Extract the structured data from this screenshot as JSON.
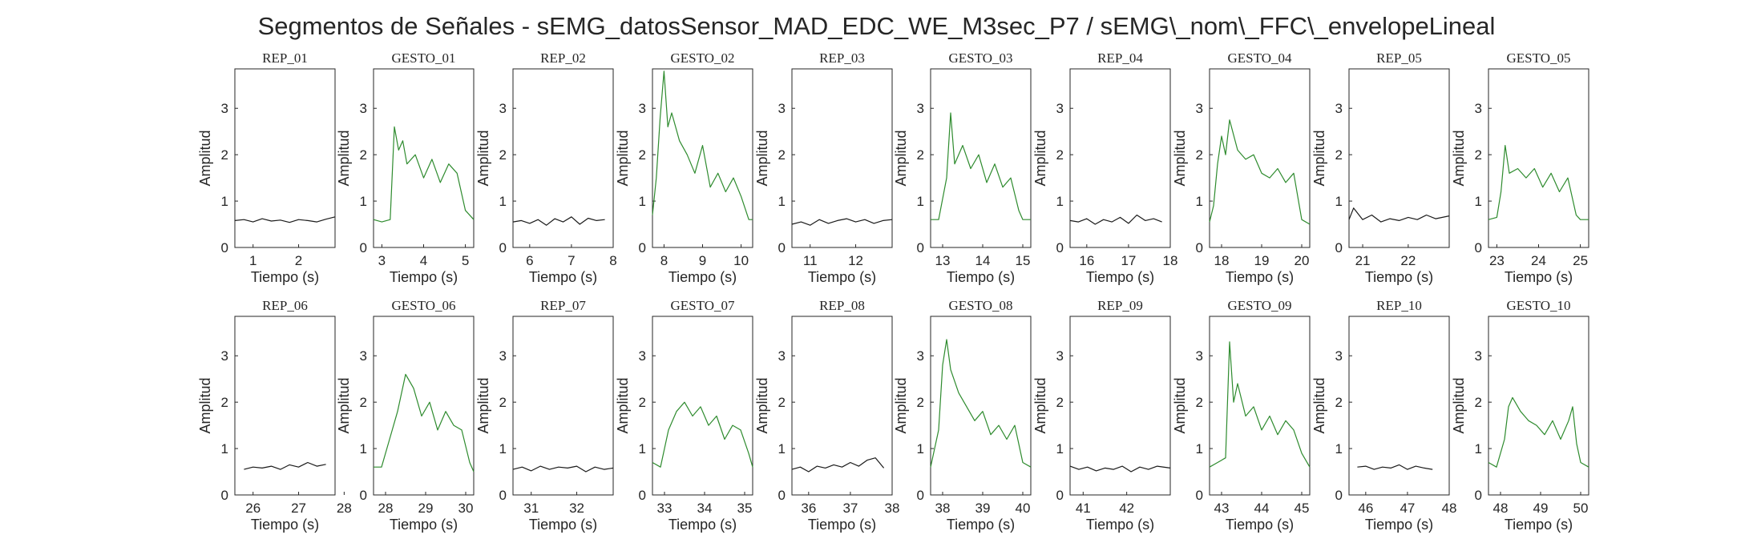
{
  "figure_title": "Segmentos de Señales - sEMG_datosSensor_MAD_EDC_WE_M3sec_P7 / sEMG\\_nom\\_FFC\\_envelopeLineal",
  "colors": {
    "rep": "#1a1a1a",
    "gesto": "#2e8b2e",
    "axes": "#262626"
  },
  "chart_data": [
    {
      "type": "line",
      "title": "REP_01",
      "xlabel": "Tiempo (s)",
      "ylabel": "Amplitud",
      "xlim": [
        0.6,
        2.8
      ],
      "ylim": [
        0,
        3.85
      ],
      "xticks": [
        1,
        2
      ],
      "yticks": [
        0,
        1,
        2,
        3
      ],
      "color": "rep",
      "x": [
        0.6,
        0.8,
        1.0,
        1.2,
        1.4,
        1.6,
        1.8,
        2.0,
        2.2,
        2.4,
        2.6,
        2.8
      ],
      "values": [
        0.58,
        0.6,
        0.55,
        0.62,
        0.57,
        0.59,
        0.54,
        0.6,
        0.58,
        0.55,
        0.61,
        0.66
      ]
    },
    {
      "type": "line",
      "title": "GESTO_01",
      "xlabel": "Tiempo (s)",
      "ylabel": "Amplitud",
      "xlim": [
        2.8,
        5.2
      ],
      "ylim": [
        0,
        3.85
      ],
      "xticks": [
        3,
        4,
        5
      ],
      "yticks": [
        0,
        1,
        2,
        3
      ],
      "color": "gesto",
      "x": [
        2.8,
        3.0,
        3.2,
        3.3,
        3.4,
        3.5,
        3.6,
        3.8,
        4.0,
        4.2,
        4.4,
        4.6,
        4.8,
        5.0,
        5.2
      ],
      "values": [
        0.6,
        0.55,
        0.6,
        2.6,
        2.1,
        2.3,
        1.8,
        2.0,
        1.5,
        1.9,
        1.4,
        1.8,
        1.6,
        0.8,
        0.6
      ]
    },
    {
      "type": "line",
      "title": "REP_02",
      "xlabel": "Tiempo (s)",
      "ylabel": "Amplitud",
      "xlim": [
        5.6,
        8.0
      ],
      "ylim": [
        0,
        3.85
      ],
      "xticks": [
        6,
        7,
        8
      ],
      "yticks": [
        0,
        1,
        2,
        3
      ],
      "color": "rep",
      "x": [
        5.6,
        5.8,
        6.0,
        6.2,
        6.4,
        6.6,
        6.8,
        7.0,
        7.2,
        7.4,
        7.6,
        7.8
      ],
      "values": [
        0.55,
        0.58,
        0.52,
        0.6,
        0.48,
        0.62,
        0.55,
        0.66,
        0.5,
        0.63,
        0.58,
        0.6
      ]
    },
    {
      "type": "line",
      "title": "GESTO_02",
      "xlabel": "Tiempo (s)",
      "ylabel": "Amplitud",
      "xlim": [
        7.7,
        10.3
      ],
      "ylim": [
        0,
        3.85
      ],
      "xticks": [
        8,
        9,
        10
      ],
      "yticks": [
        0,
        1,
        2,
        3
      ],
      "color": "gesto",
      "x": [
        7.7,
        7.8,
        7.9,
        8.0,
        8.1,
        8.2,
        8.4,
        8.6,
        8.8,
        9.0,
        9.2,
        9.4,
        9.6,
        9.8,
        10.0,
        10.2,
        10.3
      ],
      "values": [
        0.7,
        1.5,
        2.8,
        3.8,
        2.6,
        2.9,
        2.3,
        2.0,
        1.6,
        2.2,
        1.3,
        1.6,
        1.2,
        1.5,
        1.1,
        0.6,
        0.6
      ]
    },
    {
      "type": "line",
      "title": "REP_03",
      "xlabel": "Tiempo (s)",
      "ylabel": "Amplitud",
      "xlim": [
        10.6,
        12.8
      ],
      "ylim": [
        0,
        3.85
      ],
      "xticks": [
        11,
        12
      ],
      "yticks": [
        0,
        1,
        2,
        3
      ],
      "color": "rep",
      "x": [
        10.6,
        10.8,
        11.0,
        11.2,
        11.4,
        11.6,
        11.8,
        12.0,
        12.2,
        12.4,
        12.6,
        12.8
      ],
      "values": [
        0.5,
        0.55,
        0.48,
        0.6,
        0.52,
        0.58,
        0.62,
        0.55,
        0.6,
        0.52,
        0.58,
        0.6
      ]
    },
    {
      "type": "line",
      "title": "GESTO_03",
      "xlabel": "Tiempo (s)",
      "ylabel": "Amplitud",
      "xlim": [
        12.7,
        15.2
      ],
      "ylim": [
        0,
        3.85
      ],
      "xticks": [
        13,
        14,
        15
      ],
      "yticks": [
        0,
        1,
        2,
        3
      ],
      "color": "gesto",
      "x": [
        12.7,
        12.9,
        13.1,
        13.2,
        13.3,
        13.5,
        13.7,
        13.9,
        14.1,
        14.3,
        14.5,
        14.7,
        14.9,
        15.0,
        15.2
      ],
      "values": [
        0.6,
        0.6,
        1.5,
        2.9,
        1.8,
        2.2,
        1.7,
        2.0,
        1.4,
        1.8,
        1.3,
        1.5,
        0.8,
        0.6,
        0.6
      ]
    },
    {
      "type": "line",
      "title": "REP_04",
      "xlabel": "Tiempo (s)",
      "ylabel": "Amplitud",
      "xlim": [
        15.6,
        18.0
      ],
      "ylim": [
        0,
        3.85
      ],
      "xticks": [
        16,
        17,
        18
      ],
      "yticks": [
        0,
        1,
        2,
        3
      ],
      "color": "rep",
      "x": [
        15.6,
        15.8,
        16.0,
        16.2,
        16.4,
        16.6,
        16.8,
        17.0,
        17.2,
        17.4,
        17.6,
        17.8
      ],
      "values": [
        0.58,
        0.55,
        0.62,
        0.5,
        0.6,
        0.55,
        0.65,
        0.52,
        0.7,
        0.58,
        0.62,
        0.55
      ]
    },
    {
      "type": "line",
      "title": "GESTO_04",
      "xlabel": "Tiempo (s)",
      "ylabel": "Amplitud",
      "xlim": [
        17.7,
        20.2
      ],
      "ylim": [
        0,
        3.85
      ],
      "xticks": [
        18,
        19,
        20
      ],
      "yticks": [
        0,
        1,
        2,
        3
      ],
      "color": "gesto",
      "x": [
        17.7,
        17.8,
        17.9,
        18.0,
        18.1,
        18.2,
        18.4,
        18.6,
        18.8,
        19.0,
        19.2,
        19.4,
        19.6,
        19.8,
        20.0,
        20.2
      ],
      "values": [
        0.55,
        0.9,
        1.8,
        2.4,
        2.0,
        2.75,
        2.1,
        1.9,
        2.0,
        1.6,
        1.5,
        1.7,
        1.4,
        1.6,
        0.6,
        0.5
      ]
    },
    {
      "type": "line",
      "title": "REP_05",
      "xlabel": "Tiempo (s)",
      "ylabel": "Amplitud",
      "xlim": [
        20.7,
        22.9
      ],
      "ylim": [
        0,
        3.85
      ],
      "xticks": [
        21,
        22
      ],
      "yticks": [
        0,
        1,
        2,
        3
      ],
      "color": "rep",
      "x": [
        20.7,
        20.8,
        21.0,
        21.2,
        21.4,
        21.6,
        21.8,
        22.0,
        22.2,
        22.4,
        22.6,
        22.9
      ],
      "values": [
        0.6,
        0.85,
        0.6,
        0.7,
        0.55,
        0.62,
        0.58,
        0.65,
        0.6,
        0.7,
        0.62,
        0.68
      ]
    },
    {
      "type": "line",
      "title": "GESTO_05",
      "xlabel": "Tiempo (s)",
      "ylabel": "Amplitud",
      "xlim": [
        22.8,
        25.2
      ],
      "ylim": [
        0,
        3.85
      ],
      "xticks": [
        23,
        24,
        25
      ],
      "yticks": [
        0,
        1,
        2,
        3
      ],
      "color": "gesto",
      "x": [
        22.8,
        23.0,
        23.1,
        23.2,
        23.3,
        23.5,
        23.7,
        23.9,
        24.1,
        24.3,
        24.5,
        24.7,
        24.9,
        25.0,
        25.2
      ],
      "values": [
        0.6,
        0.65,
        1.2,
        2.2,
        1.6,
        1.7,
        1.5,
        1.7,
        1.3,
        1.6,
        1.2,
        1.5,
        0.7,
        0.6,
        0.6
      ]
    },
    {
      "type": "line",
      "title": "REP_06",
      "xlabel": "Tiempo (s)",
      "ylabel": "Amplitud",
      "xlim": [
        25.6,
        27.8
      ],
      "ylim": [
        0,
        3.85
      ],
      "xticks": [
        26,
        27,
        28
      ],
      "yticks": [
        0,
        1,
        2,
        3
      ],
      "color": "rep",
      "x": [
        25.8,
        26.0,
        26.2,
        26.4,
        26.6,
        26.8,
        27.0,
        27.2,
        27.4,
        27.6
      ],
      "values": [
        0.55,
        0.6,
        0.58,
        0.62,
        0.55,
        0.65,
        0.6,
        0.7,
        0.62,
        0.66
      ]
    },
    {
      "type": "line",
      "title": "GESTO_06",
      "xlabel": "Tiempo (s)",
      "ylabel": "Amplitud",
      "xlim": [
        27.7,
        30.2
      ],
      "ylim": [
        0,
        3.85
      ],
      "xticks": [
        28,
        29,
        30
      ],
      "yticks": [
        0,
        1,
        2,
        3
      ],
      "color": "gesto",
      "x": [
        27.7,
        27.9,
        28.1,
        28.3,
        28.5,
        28.7,
        28.9,
        29.1,
        29.3,
        29.5,
        29.7,
        29.9,
        30.1,
        30.2
      ],
      "values": [
        0.6,
        0.6,
        1.2,
        1.8,
        2.6,
        2.3,
        1.7,
        2.0,
        1.4,
        1.8,
        1.5,
        1.4,
        0.7,
        0.5
      ]
    },
    {
      "type": "line",
      "title": "REP_07",
      "xlabel": "Tiempo (s)",
      "ylabel": "Amplitud",
      "xlim": [
        30.6,
        32.8
      ],
      "ylim": [
        0,
        3.85
      ],
      "xticks": [
        31,
        32
      ],
      "yticks": [
        0,
        1,
        2,
        3
      ],
      "color": "rep",
      "x": [
        30.6,
        30.8,
        31.0,
        31.2,
        31.4,
        31.6,
        31.8,
        32.0,
        32.2,
        32.4,
        32.6,
        32.8
      ],
      "values": [
        0.55,
        0.6,
        0.52,
        0.62,
        0.55,
        0.6,
        0.58,
        0.62,
        0.5,
        0.6,
        0.55,
        0.58
      ]
    },
    {
      "type": "line",
      "title": "GESTO_07",
      "xlabel": "Tiempo (s)",
      "ylabel": "Amplitud",
      "xlim": [
        32.7,
        35.2
      ],
      "ylim": [
        0,
        3.85
      ],
      "xticks": [
        33,
        34,
        35
      ],
      "yticks": [
        0,
        1,
        2,
        3
      ],
      "color": "gesto",
      "x": [
        32.7,
        32.9,
        33.1,
        33.3,
        33.5,
        33.7,
        33.9,
        34.1,
        34.3,
        34.5,
        34.7,
        34.9,
        35.1,
        35.2
      ],
      "values": [
        0.7,
        0.6,
        1.4,
        1.8,
        2.0,
        1.7,
        1.9,
        1.5,
        1.7,
        1.2,
        1.5,
        1.4,
        0.9,
        0.6
      ]
    },
    {
      "type": "line",
      "title": "REP_08",
      "xlabel": "Tiempo (s)",
      "ylabel": "Amplitud",
      "xlim": [
        35.6,
        38.0
      ],
      "ylim": [
        0,
        3.85
      ],
      "xticks": [
        36,
        37,
        38
      ],
      "yticks": [
        0,
        1,
        2,
        3
      ],
      "color": "rep",
      "x": [
        35.6,
        35.8,
        36.0,
        36.2,
        36.4,
        36.6,
        36.8,
        37.0,
        37.2,
        37.4,
        37.6,
        37.8
      ],
      "values": [
        0.55,
        0.6,
        0.5,
        0.62,
        0.58,
        0.65,
        0.6,
        0.7,
        0.62,
        0.75,
        0.8,
        0.58
      ]
    },
    {
      "type": "line",
      "title": "GESTO_08",
      "xlabel": "Tiempo (s)",
      "ylabel": "Amplitud",
      "xlim": [
        37.7,
        40.2
      ],
      "ylim": [
        0,
        3.85
      ],
      "xticks": [
        38,
        39,
        40
      ],
      "yticks": [
        0,
        1,
        2,
        3
      ],
      "color": "gesto",
      "x": [
        37.7,
        37.9,
        38.0,
        38.1,
        38.2,
        38.4,
        38.6,
        38.8,
        39.0,
        39.2,
        39.4,
        39.6,
        39.8,
        40.0,
        40.2
      ],
      "values": [
        0.6,
        1.4,
        2.8,
        3.35,
        2.7,
        2.2,
        1.9,
        1.6,
        1.8,
        1.3,
        1.5,
        1.2,
        1.5,
        0.7,
        0.6
      ]
    },
    {
      "type": "line",
      "title": "REP_09",
      "xlabel": "Tiempo (s)",
      "ylabel": "Amplitud",
      "xlim": [
        40.7,
        43.0
      ],
      "ylim": [
        0,
        3.85
      ],
      "xticks": [
        41,
        42
      ],
      "yticks": [
        0,
        1,
        2,
        3
      ],
      "color": "rep",
      "x": [
        40.7,
        40.9,
        41.1,
        41.3,
        41.5,
        41.7,
        41.9,
        42.1,
        42.3,
        42.5,
        42.7,
        43.0
      ],
      "values": [
        0.62,
        0.55,
        0.6,
        0.52,
        0.58,
        0.55,
        0.62,
        0.5,
        0.6,
        0.55,
        0.62,
        0.58
      ]
    },
    {
      "type": "line",
      "title": "GESTO_09",
      "xlabel": "Tiempo (s)",
      "ylabel": "Amplitud",
      "xlim": [
        42.7,
        45.2
      ],
      "ylim": [
        0,
        3.85
      ],
      "xticks": [
        43,
        44,
        45
      ],
      "yticks": [
        0,
        1,
        2,
        3
      ],
      "color": "gesto",
      "x": [
        42.7,
        42.9,
        43.1,
        43.2,
        43.3,
        43.4,
        43.6,
        43.8,
        44.0,
        44.2,
        44.4,
        44.6,
        44.8,
        45.0,
        45.2
      ],
      "values": [
        0.6,
        0.7,
        0.8,
        3.3,
        2.0,
        2.4,
        1.7,
        1.9,
        1.4,
        1.7,
        1.3,
        1.6,
        1.4,
        0.9,
        0.6
      ]
    },
    {
      "type": "line",
      "title": "REP_10",
      "xlabel": "Tiempo (s)",
      "ylabel": "Amplitud",
      "xlim": [
        45.6,
        48.0
      ],
      "ylim": [
        0,
        3.85
      ],
      "xticks": [
        46,
        47,
        48
      ],
      "yticks": [
        0,
        1,
        2,
        3
      ],
      "color": "rep",
      "x": [
        45.8,
        46.0,
        46.2,
        46.4,
        46.6,
        46.8,
        47.0,
        47.2,
        47.4,
        47.6
      ],
      "values": [
        0.6,
        0.62,
        0.55,
        0.6,
        0.58,
        0.65,
        0.55,
        0.62,
        0.58,
        0.55
      ]
    },
    {
      "type": "line",
      "title": "GESTO_10",
      "xlabel": "Tiempo (s)",
      "ylabel": "Amplitud",
      "xlim": [
        47.7,
        50.2
      ],
      "ylim": [
        0,
        3.85
      ],
      "xticks": [
        48,
        49,
        50
      ],
      "yticks": [
        0,
        1,
        2,
        3
      ],
      "color": "gesto",
      "x": [
        47.7,
        47.9,
        48.1,
        48.2,
        48.3,
        48.5,
        48.7,
        48.9,
        49.1,
        49.3,
        49.5,
        49.7,
        49.8,
        49.9,
        50.0,
        50.2
      ],
      "values": [
        0.7,
        0.6,
        1.2,
        1.9,
        2.1,
        1.8,
        1.6,
        1.5,
        1.3,
        1.6,
        1.2,
        1.6,
        1.9,
        1.1,
        0.7,
        0.6
      ]
    }
  ]
}
